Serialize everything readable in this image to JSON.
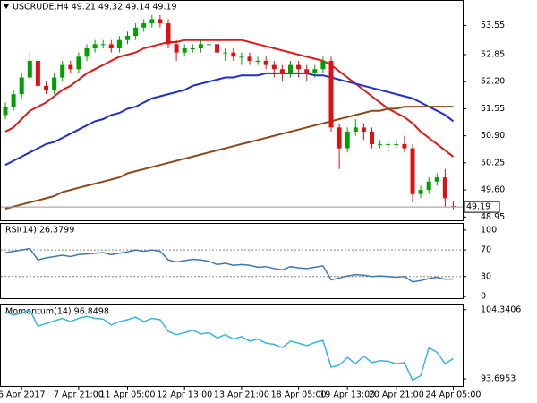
{
  "chart_data": [
    {
      "type": "candlestick",
      "title": "USCRUDE,H4  49.21 49.32 49.14 49.19",
      "categories": [
        null,
        null,
        "6 Apr 2017",
        null,
        null,
        null,
        null,
        null,
        null,
        "7 Apr 21:00",
        null,
        null,
        null,
        null,
        null,
        "11 Apr 05:00",
        null,
        null,
        null,
        null,
        null,
        null,
        "12 Apr 13:00",
        null,
        null,
        null,
        null,
        null,
        null,
        "13 Apr 21:00",
        null,
        null,
        null,
        null,
        null,
        null,
        "18 Apr 05:00",
        null,
        null,
        null,
        null,
        null,
        "19 Apr 13:00",
        null,
        null,
        null,
        null,
        null,
        "20 Apr 21:00",
        null,
        null,
        null,
        null,
        null,
        null,
        "24 Apr 05:00"
      ],
      "open": [
        51.4,
        51.6,
        51.9,
        52.3,
        52.7,
        52.1,
        52.0,
        52.3,
        52.6,
        52.5,
        52.8,
        53.0,
        53.1,
        53.1,
        53.0,
        53.2,
        53.3,
        53.5,
        53.6,
        53.7,
        53.6,
        53.1,
        52.9,
        53.0,
        53.0,
        53.1,
        53.1,
        52.9,
        52.9,
        52.8,
        52.8,
        52.7,
        52.7,
        52.6,
        52.5,
        52.4,
        52.6,
        52.5,
        52.4,
        52.5,
        52.7,
        51.1,
        50.6,
        51.0,
        51.1,
        51.0,
        50.7,
        50.7,
        50.7,
        50.7,
        50.6,
        49.5,
        49.6,
        49.8,
        49.9,
        49.21
      ],
      "high": [
        51.7,
        52.0,
        52.4,
        52.9,
        52.8,
        52.2,
        52.4,
        52.7,
        52.7,
        52.9,
        53.1,
        53.2,
        53.2,
        53.2,
        53.3,
        53.4,
        53.6,
        53.7,
        53.8,
        53.8,
        53.7,
        53.2,
        53.1,
        53.1,
        53.2,
        53.3,
        53.2,
        53.0,
        53.0,
        52.9,
        52.9,
        52.8,
        52.8,
        52.7,
        52.6,
        52.7,
        52.7,
        52.6,
        52.6,
        52.8,
        52.8,
        51.2,
        51.1,
        51.3,
        51.2,
        51.1,
        50.8,
        50.8,
        50.8,
        50.9,
        50.7,
        49.7,
        49.9,
        50.0,
        50.1,
        49.32
      ],
      "low": [
        51.3,
        51.5,
        51.8,
        52.2,
        52.0,
        51.9,
        51.9,
        52.2,
        52.4,
        52.4,
        52.7,
        52.9,
        53.0,
        52.9,
        52.9,
        53.1,
        53.2,
        53.4,
        53.5,
        53.5,
        53.0,
        52.7,
        52.8,
        52.9,
        52.9,
        53.0,
        52.8,
        52.7,
        52.7,
        52.6,
        52.6,
        52.6,
        52.5,
        52.3,
        52.2,
        52.3,
        52.3,
        52.2,
        52.3,
        52.4,
        51.0,
        50.1,
        50.5,
        50.9,
        50.8,
        50.6,
        50.6,
        50.5,
        50.6,
        50.5,
        49.3,
        49.4,
        49.5,
        49.7,
        49.2,
        49.14
      ],
      "close": [
        51.6,
        51.9,
        52.3,
        52.7,
        52.1,
        52.0,
        52.3,
        52.6,
        52.5,
        52.8,
        53.0,
        53.1,
        53.1,
        53.0,
        53.2,
        53.3,
        53.5,
        53.6,
        53.7,
        53.6,
        53.1,
        52.9,
        53.0,
        53.0,
        53.1,
        53.1,
        52.9,
        52.9,
        52.8,
        52.8,
        52.7,
        52.7,
        52.6,
        52.5,
        52.4,
        52.6,
        52.5,
        52.4,
        52.5,
        52.7,
        51.1,
        50.6,
        51.0,
        51.1,
        51.0,
        50.7,
        50.7,
        50.7,
        50.7,
        50.6,
        49.5,
        49.6,
        49.8,
        49.9,
        49.4,
        49.19
      ],
      "up_color": "#00a000",
      "down_color": "#e01010",
      "series": [
        {
          "color": "#e01818",
          "values": [
            51.0,
            51.1,
            51.3,
            51.5,
            51.6,
            51.7,
            51.85,
            52.0,
            52.1,
            52.25,
            52.4,
            52.5,
            52.6,
            52.7,
            52.8,
            52.85,
            52.9,
            53.0,
            53.05,
            53.1,
            53.15,
            53.15,
            53.2,
            53.2,
            53.2,
            53.2,
            53.2,
            53.2,
            53.2,
            53.2,
            53.15,
            53.1,
            53.05,
            53.0,
            52.95,
            52.9,
            52.85,
            52.8,
            52.75,
            52.7,
            52.6,
            52.45,
            52.3,
            52.15,
            52.0,
            51.85,
            51.7,
            51.55,
            51.45,
            51.35,
            51.2,
            51.0,
            50.85,
            50.7,
            50.55,
            50.4
          ]
        },
        {
          "color": "#1f2fc8",
          "values": [
            50.2,
            50.3,
            50.4,
            50.5,
            50.6,
            50.7,
            50.75,
            50.85,
            50.95,
            51.05,
            51.15,
            51.25,
            51.3,
            51.4,
            51.45,
            51.55,
            51.6,
            51.7,
            51.8,
            51.85,
            51.9,
            51.95,
            52.0,
            52.1,
            52.15,
            52.2,
            52.25,
            52.3,
            52.3,
            52.35,
            52.35,
            52.35,
            52.4,
            52.4,
            52.4,
            52.4,
            52.4,
            52.4,
            52.35,
            52.35,
            52.3,
            52.25,
            52.2,
            52.15,
            52.1,
            52.05,
            52.0,
            51.95,
            51.9,
            51.85,
            51.8,
            51.7,
            51.6,
            51.5,
            51.4,
            51.25
          ]
        },
        {
          "color": "#8b4a1e",
          "values": [
            49.15,
            49.2,
            49.25,
            49.3,
            49.35,
            49.4,
            49.45,
            49.55,
            49.6,
            49.65,
            49.7,
            49.75,
            49.8,
            49.85,
            49.9,
            50.0,
            50.05,
            50.1,
            50.15,
            50.2,
            50.25,
            50.3,
            50.35,
            50.4,
            50.45,
            50.5,
            50.55,
            50.6,
            50.65,
            50.7,
            50.75,
            50.8,
            50.85,
            50.9,
            50.95,
            51.0,
            51.05,
            51.1,
            51.15,
            51.2,
            51.25,
            51.3,
            51.35,
            51.4,
            51.45,
            51.5,
            51.5,
            51.55,
            51.55,
            51.6,
            51.6,
            51.6,
            51.6,
            51.6,
            51.6,
            51.6
          ]
        }
      ],
      "ylim": [
        48.87,
        54.14
      ],
      "yticks": [
        53.55,
        52.85,
        {
          "value": 52.2,
          "label": "52.20"
        },
        51.55,
        {
          "value": 50.9,
          "label": "50.90"
        },
        50.25,
        {
          "value": 49.6,
          "label": "49.60"
        },
        48.95
      ],
      "grid": false
    },
    {
      "type": "line",
      "title": "RSI(14) 26.3799",
      "color": "#3f78b0",
      "values": [
        66,
        68,
        70,
        72,
        55,
        58,
        60,
        62,
        60,
        63,
        64,
        65,
        66,
        63,
        65,
        67,
        70,
        68,
        70,
        68,
        55,
        52,
        54,
        56,
        55,
        53,
        48,
        50,
        47,
        48,
        47,
        44,
        45,
        42,
        40,
        45,
        43,
        42,
        44,
        46,
        25,
        28,
        31,
        33,
        32,
        30,
        31,
        30,
        29,
        30,
        22,
        24,
        27,
        29,
        26,
        26.3799
      ],
      "ylim": [
        -2.6,
        109.2
      ],
      "yticks": [
        100,
        70,
        30,
        0
      ],
      "grid": true
    },
    {
      "type": "line",
      "title": "Momentum(14) 96.8498",
      "color": "#3ab4e4",
      "values": [
        104,
        103.5,
        103.8,
        104.3,
        101.8,
        102.2,
        102.6,
        103,
        102.5,
        103,
        103.3,
        103,
        102.9,
        102,
        102.5,
        102.8,
        103.2,
        102.5,
        103,
        102.8,
        101,
        100.5,
        100.8,
        101.2,
        100.6,
        100.8,
        100,
        100.5,
        99.8,
        100.2,
        99.5,
        99.8,
        99.2,
        99,
        98.5,
        99.5,
        99.2,
        98.8,
        99.3,
        99.6,
        95.5,
        95.8,
        97,
        96,
        97.2,
        96.2,
        96.5,
        96.4,
        96,
        96.2,
        93.5,
        94.2,
        98.5,
        97.8,
        96.0,
        96.8498
      ],
      "ylim": [
        92.6,
        105.0
      ],
      "yticks": [
        104.3406,
        93.6953
      ],
      "grid": false
    }
  ]
}
